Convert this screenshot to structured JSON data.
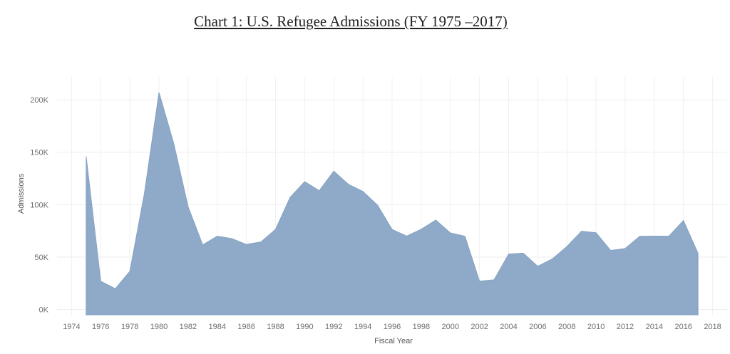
{
  "chart_data": {
    "type": "area",
    "title": "Chart 1: U.S. Refugee Admissions (FY 1975 –2017)",
    "xlabel": "Fiscal Year",
    "ylabel": "Admissions",
    "color": "#8eaac8",
    "grid": true,
    "xlim": [
      1973,
      2019
    ],
    "ylim": [
      -5000,
      215000
    ],
    "x_ticks": [
      "1974",
      "1976",
      "1978",
      "1980",
      "1982",
      "1984",
      "1986",
      "1988",
      "1990",
      "1992",
      "1994",
      "1996",
      "1998",
      "2000",
      "2002",
      "2004",
      "2006",
      "2008",
      "2010",
      "2012",
      "2014",
      "2016",
      "2018"
    ],
    "y_ticks": [
      {
        "value": 0,
        "label": "0K"
      },
      {
        "value": 50000,
        "label": "50K"
      },
      {
        "value": 100000,
        "label": "100K"
      },
      {
        "value": 150000,
        "label": "150K"
      },
      {
        "value": 200000,
        "label": "200K"
      }
    ],
    "x": [
      1975,
      1976,
      1977,
      1978,
      1979,
      1980,
      1981,
      1982,
      1983,
      1984,
      1985,
      1986,
      1987,
      1988,
      1989,
      1990,
      1991,
      1992,
      1993,
      1994,
      1995,
      1996,
      1997,
      1998,
      1999,
      2000,
      2001,
      2002,
      2003,
      2004,
      2005,
      2006,
      2007,
      2008,
      2009,
      2010,
      2011,
      2012,
      2013,
      2014,
      2015,
      2016,
      2017
    ],
    "values": [
      146000,
      27000,
      19900,
      36500,
      111000,
      207000,
      159000,
      98000,
      61700,
      70000,
      67700,
      62100,
      64500,
      76500,
      107000,
      122000,
      113400,
      132000,
      119400,
      112600,
      99500,
      76400,
      70100,
      76600,
      85300,
      73100,
      69900,
      27100,
      28400,
      52900,
      53800,
      41300,
      48300,
      60100,
      74700,
      73300,
      56400,
      58200,
      69900,
      69990,
      70000,
      84990,
      53700
    ]
  }
}
